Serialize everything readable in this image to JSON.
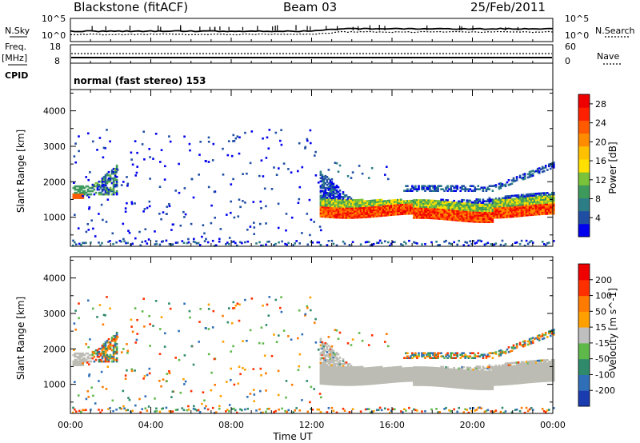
{
  "header": {
    "station": "Blackstone (fitACF)",
    "beam": "Beam 03",
    "date": "25/Feb/2011"
  },
  "status_panel": {
    "left_top_label": "N.Sky",
    "left_mid_label_1": "Freq.",
    "left_mid_label_2": "[MHz]",
    "left_bottom_label": "CPID",
    "right_top_label": "N.Search",
    "right_mid_label": "Nave",
    "noise_ticks_left": [
      "10^5",
      "10^0"
    ],
    "noise_ticks_right": [
      "10^5",
      "10^0"
    ],
    "freq_ticks": [
      "18",
      "8"
    ],
    "nave_ticks": [
      "60",
      "0"
    ],
    "cpid_text": "normal (fast stereo) 153",
    "freq_mhz": 10.5,
    "nave": 32
  },
  "chart_data": [
    {
      "type": "heatmap",
      "name": "power",
      "ylabel": "Slant Range [km]",
      "xlim": [
        0,
        24
      ],
      "ylim": [
        180,
        4600
      ],
      "yticks": [
        "1000",
        "2000",
        "3000",
        "4000"
      ],
      "colorbar": {
        "label": "Power [dB]",
        "ticks": [
          "4",
          "8",
          "12",
          "16",
          "20",
          "24",
          "28"
        ],
        "colors": [
          "#0000ee",
          "#1f4ea3",
          "#2d7d86",
          "#3d9a5b",
          "#7ac23a",
          "#ffe000",
          "#ffc000",
          "#ff8c00",
          "#ff5a00",
          "#ff2000",
          "#ee0000"
        ],
        "range": [
          0,
          30
        ]
      }
    },
    {
      "type": "heatmap",
      "name": "velocity",
      "ylabel": "Slant Range [km]",
      "xlabel": "Time UT",
      "xlim": [
        0,
        24
      ],
      "ylim": [
        180,
        4600
      ],
      "xticks": [
        "00:00",
        "04:00",
        "08:00",
        "12:00",
        "16:00",
        "20:00",
        "00:00"
      ],
      "yticks": [
        "1000",
        "2000",
        "3000",
        "4000"
      ],
      "colorbar": {
        "label": "Velocity [m s^-1]",
        "ticks": [
          "200",
          "100",
          "50",
          "15",
          "-15",
          "-50",
          "-100",
          "-200"
        ],
        "colors": [
          "#1a3cb0",
          "#2f6fb8",
          "#2e8a6a",
          "#5fb84a",
          "#bfbfbf",
          "#ffa000",
          "#ff7a00",
          "#ff3000",
          "#ee0000"
        ]
      }
    }
  ],
  "colors": {
    "ground_scatter": "#bcbcb4",
    "axis": "#000000"
  }
}
